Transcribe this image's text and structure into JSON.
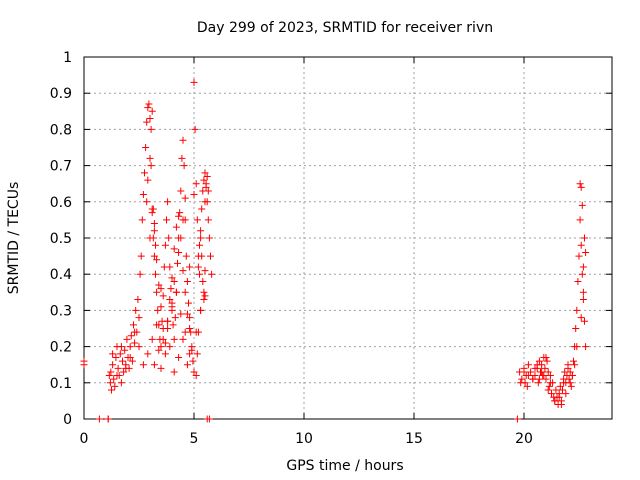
{
  "chart_data": {
    "type": "scatter",
    "title": "Day 299 of 2023, SRMTID for receiver rivn",
    "xlabel": "GPS time / hours",
    "ylabel": "SRMTID / TECUs",
    "xlim": [
      0,
      24
    ],
    "ylim": [
      0,
      1
    ],
    "xticks": [
      0,
      5,
      10,
      15,
      20
    ],
    "xtick_labels": [
      "0",
      "5",
      "10",
      "15",
      "20"
    ],
    "yticks": [
      0,
      0.1,
      0.2,
      0.3,
      0.4,
      0.5,
      0.6,
      0.7,
      0.8,
      0.9,
      1
    ],
    "ytick_labels": [
      "0",
      "0.1",
      "0.2",
      "0.3",
      "0.4",
      "0.5",
      "0.6",
      "0.7",
      "0.8",
      "0.9",
      "1"
    ],
    "grid": true,
    "marker": "+",
    "marker_color": "#ff0000",
    "series": [
      {
        "name": "SRMTID",
        "x": [
          0.0,
          0.0,
          0.7,
          1.1,
          1.15,
          1.2,
          1.22,
          1.25,
          1.3,
          1.35,
          1.4,
          1.45,
          1.5,
          1.55,
          1.6,
          1.65,
          1.7,
          1.75,
          1.8,
          1.85,
          1.9,
          1.95,
          2.0,
          2.05,
          2.1,
          2.15,
          2.2,
          2.25,
          2.3,
          2.35,
          2.4,
          2.45,
          2.5,
          2.55,
          2.6,
          2.65,
          2.7,
          2.75,
          2.8,
          2.85,
          2.9,
          2.95,
          3.0,
          3.05,
          3.1,
          3.15,
          3.2,
          3.25,
          3.3,
          3.35,
          3.4,
          3.45,
          3.5,
          3.55,
          3.6,
          3.65,
          3.7,
          3.75,
          3.8,
          3.85,
          3.9,
          3.95,
          4.0,
          4.05,
          4.1,
          4.15,
          4.2,
          4.25,
          4.3,
          4.35,
          4.4,
          4.45,
          4.5,
          4.55,
          4.6,
          4.65,
          4.7,
          4.75,
          4.8,
          4.85,
          4.9,
          4.95,
          5.0,
          5.05,
          5.1,
          5.15,
          5.2,
          5.25,
          5.3,
          5.35,
          5.4,
          5.45,
          5.5,
          5.55,
          5.6,
          5.65,
          5.7,
          5.75,
          5.8,
          1.3,
          1.5,
          1.7,
          1.9,
          2.1,
          2.3,
          2.5,
          2.7,
          2.9,
          3.1,
          3.3,
          3.5,
          3.7,
          3.9,
          4.1,
          4.3,
          4.5,
          4.7,
          4.9,
          5.1,
          5.3,
          5.5,
          2.85,
          2.9,
          3.0,
          3.05,
          3.1,
          3.15,
          3.2,
          3.25,
          3.3,
          3.4,
          3.5,
          3.6,
          3.7,
          3.8,
          3.9,
          4.0,
          4.1,
          4.2,
          4.3,
          4.4,
          4.5,
          4.6,
          4.7,
          4.8,
          3.0,
          3.1,
          3.2,
          3.5,
          3.8,
          4.0,
          4.1,
          4.3,
          4.5,
          4.6,
          4.8,
          5.0,
          5.2,
          5.25,
          5.3,
          5.35,
          5.4,
          5.45,
          5.5,
          5.55,
          5.6,
          5.65,
          5.1,
          5.15,
          5.2,
          5.3,
          5.45,
          5.5,
          3.2,
          3.4,
          3.6,
          3.8,
          4.0,
          4.2,
          4.4,
          4.6,
          4.8,
          5.0,
          19.8,
          19.9,
          20.0,
          20.05,
          20.1,
          20.15,
          20.2,
          20.3,
          20.4,
          20.5,
          20.6,
          20.65,
          20.7,
          20.75,
          20.8,
          20.85,
          20.9,
          20.95,
          21.0,
          21.05,
          21.1,
          21.15,
          21.2,
          21.25,
          21.3,
          21.35,
          21.4,
          21.45,
          21.5,
          21.55,
          21.6,
          21.65,
          21.7,
          21.75,
          21.8,
          21.85,
          21.9,
          21.95,
          22.0,
          22.05,
          22.1,
          22.15,
          22.2,
          22.25,
          22.3,
          22.35,
          22.4,
          22.45,
          22.5,
          22.55,
          22.6,
          22.65,
          22.7,
          22.75,
          22.8,
          19.85,
          20.0,
          20.2,
          20.4,
          20.6,
          20.8,
          21.0,
          21.2,
          21.4,
          21.6,
          21.8,
          22.0,
          22.2,
          22.4,
          22.6,
          22.7,
          22.8,
          22.55,
          22.6,
          22.65,
          22.7,
          22.75,
          20.5,
          20.7,
          20.9,
          21.1,
          21.7,
          21.9,
          22.1,
          22.3,
          1.1,
          5.6,
          5.7,
          19.7
        ],
        "y": [
          0.16,
          0.15,
          0.0,
          0.0,
          0.12,
          0.1,
          0.13,
          0.08,
          0.15,
          0.11,
          0.09,
          0.17,
          0.2,
          0.14,
          0.12,
          0.18,
          0.1,
          0.16,
          0.13,
          0.19,
          0.15,
          0.22,
          0.17,
          0.14,
          0.2,
          0.23,
          0.16,
          0.26,
          0.21,
          0.3,
          0.24,
          0.33,
          0.28,
          0.4,
          0.45,
          0.55,
          0.62,
          0.68,
          0.75,
          0.82,
          0.86,
          0.87,
          0.83,
          0.7,
          0.58,
          0.5,
          0.45,
          0.4,
          0.35,
          0.3,
          0.26,
          0.22,
          0.2,
          0.27,
          0.34,
          0.42,
          0.48,
          0.55,
          0.6,
          0.5,
          0.42,
          0.36,
          0.3,
          0.26,
          0.22,
          0.28,
          0.35,
          0.43,
          0.5,
          0.57,
          0.63,
          0.72,
          0.77,
          0.7,
          0.55,
          0.45,
          0.38,
          0.32,
          0.28,
          0.24,
          0.2,
          0.16,
          0.93,
          0.8,
          0.65,
          0.55,
          0.45,
          0.4,
          0.5,
          0.58,
          0.63,
          0.66,
          0.68,
          0.64,
          0.6,
          0.55,
          0.5,
          0.45,
          0.4,
          0.18,
          0.12,
          0.2,
          0.14,
          0.17,
          0.24,
          0.2,
          0.15,
          0.18,
          0.22,
          0.26,
          0.14,
          0.18,
          0.2,
          0.13,
          0.17,
          0.22,
          0.15,
          0.19,
          0.24,
          0.3,
          0.34,
          0.6,
          0.66,
          0.72,
          0.8,
          0.85,
          0.58,
          0.52,
          0.48,
          0.44,
          0.37,
          0.31,
          0.25,
          0.21,
          0.27,
          0.33,
          0.39,
          0.47,
          0.53,
          0.56,
          0.5,
          0.41,
          0.35,
          0.29,
          0.25,
          0.5,
          0.57,
          0.54,
          0.36,
          0.25,
          0.32,
          0.38,
          0.46,
          0.55,
          0.61,
          0.42,
          0.62,
          0.42,
          0.48,
          0.52,
          0.45,
          0.38,
          0.33,
          0.6,
          0.65,
          0.67,
          0.63,
          0.12,
          0.18,
          0.24,
          0.3,
          0.35,
          0.41,
          0.15,
          0.19,
          0.22,
          0.27,
          0.31,
          0.35,
          0.29,
          0.24,
          0.18,
          0.13,
          0.13,
          0.11,
          0.14,
          0.1,
          0.12,
          0.09,
          0.15,
          0.13,
          0.11,
          0.12,
          0.14,
          0.1,
          0.16,
          0.13,
          0.15,
          0.12,
          0.17,
          0.14,
          0.11,
          0.16,
          0.13,
          0.09,
          0.12,
          0.07,
          0.1,
          0.06,
          0.05,
          0.08,
          0.06,
          0.04,
          0.07,
          0.09,
          0.05,
          0.08,
          0.11,
          0.13,
          0.1,
          0.12,
          0.15,
          0.11,
          0.13,
          0.09,
          0.12,
          0.16,
          0.2,
          0.25,
          0.3,
          0.38,
          0.45,
          0.55,
          0.48,
          0.4,
          0.33,
          0.27,
          0.2,
          0.1,
          0.13,
          0.12,
          0.11,
          0.15,
          0.13,
          0.17,
          0.1,
          0.05,
          0.06,
          0.1,
          0.14,
          0.12,
          0.2,
          0.28,
          0.35,
          0.46,
          0.65,
          0.64,
          0.59,
          0.42,
          0.5,
          0.14,
          0.11,
          0.12,
          0.08,
          0.04,
          0.07,
          0.1,
          0.15,
          0.0,
          0.0,
          0.0,
          0.0
        ]
      }
    ]
  }
}
